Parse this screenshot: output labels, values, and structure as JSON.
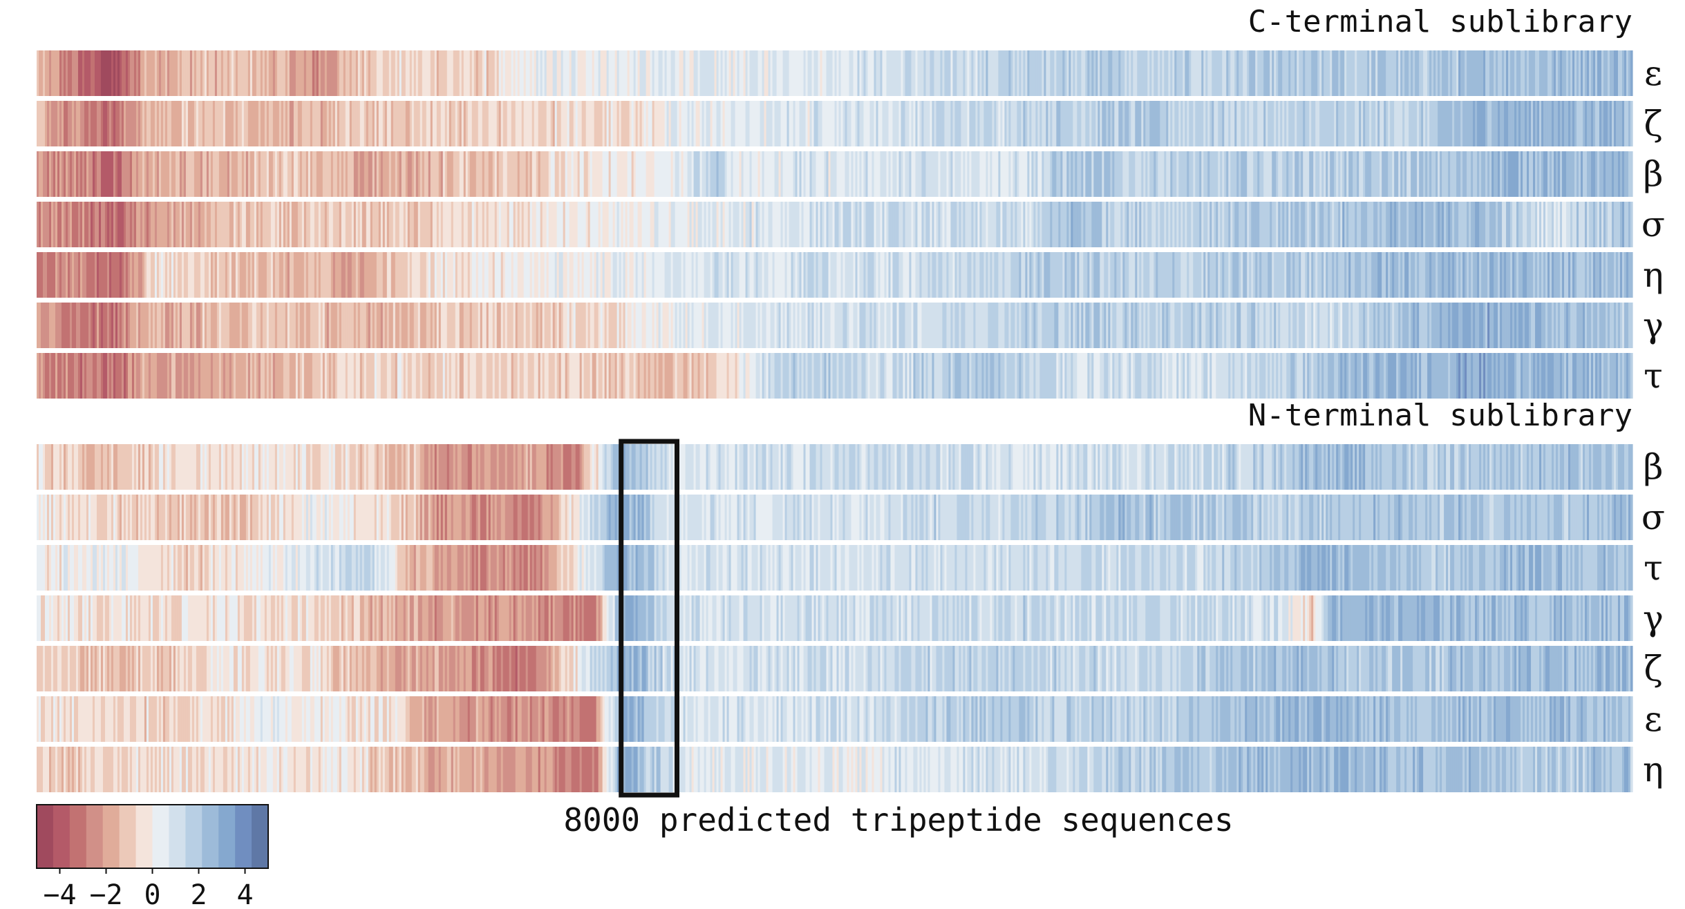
{
  "chart_data": {
    "type": "heatmap",
    "xlabel": "8000 predicted tripeptide sequences",
    "n_sequences": 8000,
    "colormap": {
      "name": "RdBu (reversed, 14 discrete levels)",
      "vmin": -5,
      "vmax": 5,
      "colors": [
        "#a04a5e",
        "#b45a68",
        "#c27272",
        "#d19088",
        "#e0ac9a",
        "#ecc9b9",
        "#f4e4dc",
        "#e8eef3",
        "#d2e0ec",
        "#b8cfe4",
        "#9dbbd9",
        "#85a8cf",
        "#708ec0",
        "#5f78a6"
      ]
    },
    "colorbar": {
      "ticks": [
        -4,
        -2,
        0,
        2,
        4
      ],
      "tick_labels": [
        "−4",
        "−2",
        "0",
        "2",
        "4"
      ]
    },
    "highlight": {
      "panel": "N-terminal sublibrary",
      "x_range": [
        2930,
        3210
      ],
      "note": "black rectangle marks a block of sequences scoring high (blue) across all seven rows"
    },
    "panels": [
      {
        "title": "C-terminal sublibrary",
        "rows": [
          {
            "label": "ε",
            "profile": [
              [
                0,
                -1.5
              ],
              [
                250,
                -3.8
              ],
              [
                400,
                -4.6
              ],
              [
                550,
                -1.5
              ],
              [
                1100,
                -1.3
              ],
              [
                1400,
                -2.5
              ],
              [
                1650,
                -0.8
              ],
              [
                2300,
                -0.7
              ],
              [
                2500,
                0.2
              ],
              [
                4000,
                0.8
              ],
              [
                4500,
                1.2
              ],
              [
                5450,
                2.0
              ],
              [
                5500,
                1.4
              ],
              [
                6300,
                1.8
              ],
              [
                7200,
                2.2
              ],
              [
                7800,
                2.6
              ],
              [
                8000,
                2.5
              ]
            ]
          },
          {
            "label": "ζ",
            "profile": [
              [
                0,
                -1.5
              ],
              [
                250,
                -2.5
              ],
              [
                400,
                -3.2
              ],
              [
                550,
                -1.5
              ],
              [
                1000,
                -1.2
              ],
              [
                1400,
                -1.6
              ],
              [
                1700,
                -1.0
              ],
              [
                3000,
                -0.5
              ],
              [
                3300,
                0.5
              ],
              [
                4000,
                0.8
              ],
              [
                4500,
                1.2
              ],
              [
                5450,
                1.9
              ],
              [
                6000,
                1.5
              ],
              [
                7000,
                1.6
              ],
              [
                7200,
                2.8
              ],
              [
                8000,
                2.6
              ]
            ]
          },
          {
            "label": "β",
            "profile": [
              [
                0,
                -2.2
              ],
              [
                250,
                -2.7
              ],
              [
                400,
                -3.4
              ],
              [
                550,
                -1.8
              ],
              [
                1100,
                -1.4
              ],
              [
                1250,
                -0.6
              ],
              [
                1600,
                -2.0
              ],
              [
                2200,
                -1.2
              ],
              [
                3200,
                0.2
              ],
              [
                3400,
                1.8
              ],
              [
                3500,
                0.6
              ],
              [
                5000,
                1.0
              ],
              [
                5200,
                2.2
              ],
              [
                5500,
                1.6
              ],
              [
                7200,
                2.0
              ],
              [
                7300,
                2.8
              ],
              [
                8000,
                2.3
              ]
            ]
          },
          {
            "label": "σ",
            "profile": [
              [
                0,
                -2.4
              ],
              [
                250,
                -2.8
              ],
              [
                400,
                -3.5
              ],
              [
                550,
                -2.2
              ],
              [
                1000,
                -1.2
              ],
              [
                1300,
                -1.3
              ],
              [
                1700,
                -1.0
              ],
              [
                2500,
                -0.4
              ],
              [
                3500,
                0.6
              ],
              [
                4000,
                1.2
              ],
              [
                5000,
                1.1
              ],
              [
                5200,
                2.4
              ],
              [
                5500,
                1.5
              ],
              [
                7200,
                2.5
              ],
              [
                7600,
                0.8
              ],
              [
                7800,
                2.0
              ],
              [
                8000,
                2.2
              ]
            ]
          },
          {
            "label": "η",
            "profile": [
              [
                0,
                -3.0
              ],
              [
                250,
                -2.6
              ],
              [
                400,
                -3.8
              ],
              [
                600,
                -0.5
              ],
              [
                1100,
                -1.2
              ],
              [
                1300,
                -1.5
              ],
              [
                1600,
                -2.0
              ],
              [
                2000,
                -0.3
              ],
              [
                3500,
                0.8
              ],
              [
                4500,
                1.2
              ],
              [
                5200,
                1.9
              ],
              [
                5500,
                1.5
              ],
              [
                6000,
                1.8
              ],
              [
                7200,
                2.6
              ],
              [
                8000,
                2.4
              ]
            ]
          },
          {
            "label": "γ",
            "profile": [
              [
                0,
                -2.2
              ],
              [
                250,
                -2.7
              ],
              [
                400,
                -3.2
              ],
              [
                550,
                -1.5
              ],
              [
                1000,
                -1.4
              ],
              [
                1200,
                -1.1
              ],
              [
                1600,
                -1.5
              ],
              [
                2800,
                -0.6
              ],
              [
                3300,
                0.5
              ],
              [
                4500,
                1.4
              ],
              [
                5500,
                1.9
              ],
              [
                6500,
                1.3
              ],
              [
                7200,
                2.9
              ],
              [
                7700,
                2.3
              ],
              [
                8000,
                1.8
              ]
            ]
          },
          {
            "label": "τ",
            "profile": [
              [
                0,
                -2.6
              ],
              [
                250,
                -2.9
              ],
              [
                400,
                -3.3
              ],
              [
                550,
                -1.8
              ],
              [
                800,
                -2.2
              ],
              [
                1300,
                -1.3
              ],
              [
                1700,
                -0.6
              ],
              [
                2500,
                -0.9
              ],
              [
                3300,
                -1.4
              ],
              [
                3600,
                0.5
              ],
              [
                3700,
                1.8
              ],
              [
                4300,
                1.2
              ],
              [
                4800,
                2.2
              ],
              [
                5200,
                1.0
              ],
              [
                6000,
                1.1
              ],
              [
                6500,
                2.2
              ],
              [
                7200,
                3.0
              ],
              [
                8000,
                2.4
              ]
            ]
          }
        ]
      },
      {
        "title": "N-terminal sublibrary",
        "rows": [
          {
            "label": "β",
            "profile": [
              [
                0,
                -0.4
              ],
              [
                300,
                -1.4
              ],
              [
                800,
                -0.3
              ],
              [
                1300,
                -0.2
              ],
              [
                1900,
                -1.2
              ],
              [
                2000,
                -2.6
              ],
              [
                2500,
                -2.0
              ],
              [
                2700,
                -2.9
              ],
              [
                2930,
                3.2
              ],
              [
                3210,
                0.6
              ],
              [
                4200,
                1.3
              ],
              [
                5000,
                0.8
              ],
              [
                6200,
                1.6
              ],
              [
                6400,
                2.6
              ],
              [
                7000,
                1.8
              ],
              [
                7500,
                2.2
              ],
              [
                8000,
                2.0
              ]
            ]
          },
          {
            "label": "σ",
            "profile": [
              [
                0,
                -0.3
              ],
              [
                600,
                -1.0
              ],
              [
                1000,
                -1.2
              ],
              [
                1400,
                0.4
              ],
              [
                1800,
                -0.8
              ],
              [
                2000,
                -2.2
              ],
              [
                2500,
                -2.9
              ],
              [
                2930,
                3.1
              ],
              [
                3210,
                0.7
              ],
              [
                4000,
                1.2
              ],
              [
                5200,
                1.6
              ],
              [
                5400,
                2.2
              ],
              [
                6300,
                1.8
              ],
              [
                6800,
                2.3
              ],
              [
                7500,
                2.0
              ],
              [
                8000,
                2.4
              ]
            ]
          },
          {
            "label": "τ",
            "profile": [
              [
                0,
                -0.2
              ],
              [
                400,
                0.3
              ],
              [
                800,
                -0.8
              ],
              [
                1300,
                0.5
              ],
              [
                1700,
                1.4
              ],
              [
                1900,
                -1.8
              ],
              [
                2500,
                -2.8
              ],
              [
                2930,
                3.0
              ],
              [
                3210,
                0.8
              ],
              [
                4000,
                0.9
              ],
              [
                6000,
                1.4
              ],
              [
                6400,
                2.8
              ],
              [
                7000,
                1.7
              ],
              [
                7400,
                2.4
              ],
              [
                8000,
                2.1
              ]
            ]
          },
          {
            "label": "γ",
            "profile": [
              [
                0,
                -0.4
              ],
              [
                400,
                -0.6
              ],
              [
                900,
                -0.3
              ],
              [
                1500,
                -0.6
              ],
              [
                1700,
                -1.5
              ],
              [
                2000,
                -2.2
              ],
              [
                2500,
                -2.3
              ],
              [
                2800,
                -3.0
              ],
              [
                2930,
                3.1
              ],
              [
                3210,
                0.8
              ],
              [
                4000,
                1.1
              ],
              [
                5000,
                1.4
              ],
              [
                6200,
                1.3
              ],
              [
                6400,
                -0.8
              ],
              [
                6480,
                2.8
              ],
              [
                7500,
                2.3
              ],
              [
                8000,
                2.4
              ]
            ]
          },
          {
            "label": "ζ",
            "profile": [
              [
                0,
                -0.8
              ],
              [
                500,
                -1.4
              ],
              [
                800,
                -0.5
              ],
              [
                1300,
                -0.3
              ],
              [
                1700,
                -1.6
              ],
              [
                2000,
                -2.1
              ],
              [
                2500,
                -3.0
              ],
              [
                2930,
                3.0
              ],
              [
                3210,
                0.9
              ],
              [
                4000,
                1.1
              ],
              [
                4800,
                1.6
              ],
              [
                5500,
                1.3
              ],
              [
                6200,
                2.3
              ],
              [
                7000,
                2.0
              ],
              [
                7500,
                2.6
              ],
              [
                8000,
                2.4
              ]
            ]
          },
          {
            "label": "ε",
            "profile": [
              [
                0,
                -0.6
              ],
              [
                800,
                -0.8
              ],
              [
                1200,
                0.3
              ],
              [
                1800,
                -0.6
              ],
              [
                2000,
                -2.0
              ],
              [
                2500,
                -2.4
              ],
              [
                2800,
                -3.2
              ],
              [
                2930,
                3.2
              ],
              [
                3210,
                0.8
              ],
              [
                4300,
                1.2
              ],
              [
                4700,
                2.0
              ],
              [
                5500,
                1.4
              ],
              [
                6400,
                2.8
              ],
              [
                7000,
                2.2
              ],
              [
                7500,
                2.5
              ],
              [
                8000,
                2.3
              ]
            ]
          },
          {
            "label": "η",
            "profile": [
              [
                0,
                -1.0
              ],
              [
                400,
                -0.6
              ],
              [
                900,
                -0.4
              ],
              [
                1500,
                -0.2
              ],
              [
                2000,
                -1.5
              ],
              [
                2500,
                -2.3
              ],
              [
                2800,
                -3.2
              ],
              [
                2930,
                3.2
              ],
              [
                3210,
                0.7
              ],
              [
                4000,
                0.5
              ],
              [
                5000,
                1.0
              ],
              [
                6400,
                2.8
              ],
              [
                7000,
                2.3
              ],
              [
                7500,
                2.0
              ],
              [
                8000,
                2.2
              ]
            ]
          }
        ]
      }
    ]
  }
}
